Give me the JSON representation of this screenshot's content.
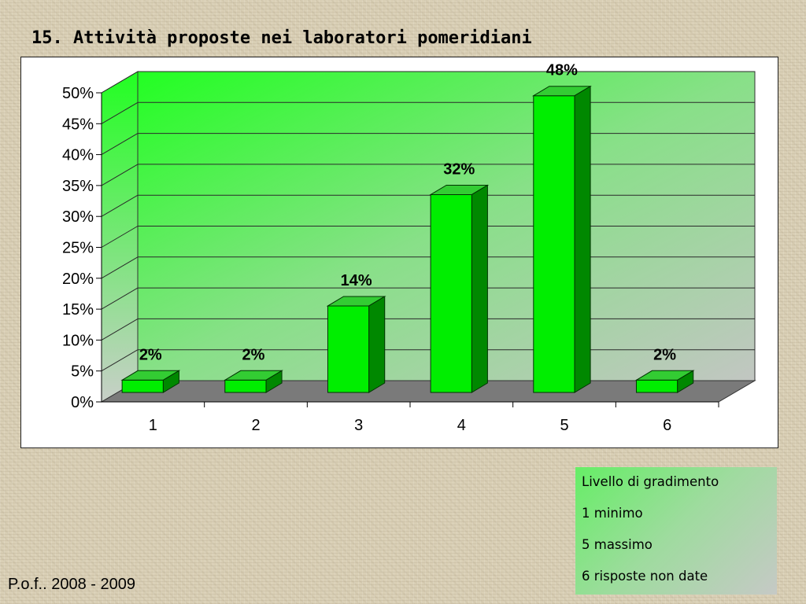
{
  "slide": {
    "title": "15. Attività proposte nei laboratori pomeridiani",
    "footer": "P.o.f.. 2008 - 2009"
  },
  "legend": {
    "lines": [
      "Livello di gradimento",
      "1 minimo",
      "5 massimo",
      "6 risposte non date"
    ]
  },
  "chart_data": {
    "type": "bar",
    "title": "",
    "xlabel": "",
    "ylabel": "",
    "categories": [
      "1",
      "2",
      "3",
      "4",
      "5",
      "6"
    ],
    "values": [
      2,
      2,
      14,
      32,
      48,
      2
    ],
    "value_labels": [
      "2%",
      "2%",
      "14%",
      "32%",
      "48%",
      "2%"
    ],
    "y_ticks": [
      "0%",
      "5%",
      "10%",
      "15%",
      "20%",
      "25%",
      "30%",
      "35%",
      "40%",
      "45%",
      "50%"
    ],
    "ylim": [
      0,
      50
    ],
    "grid": true,
    "style": "3d-column",
    "colors": {
      "bar_front": "#00ee00",
      "bar_top": "#33cc33",
      "bar_side": "#008800",
      "floor": "#7a7a7a",
      "wall_top_left": "#22ff22",
      "wall_bottom_right": "#c2c6c2"
    }
  }
}
